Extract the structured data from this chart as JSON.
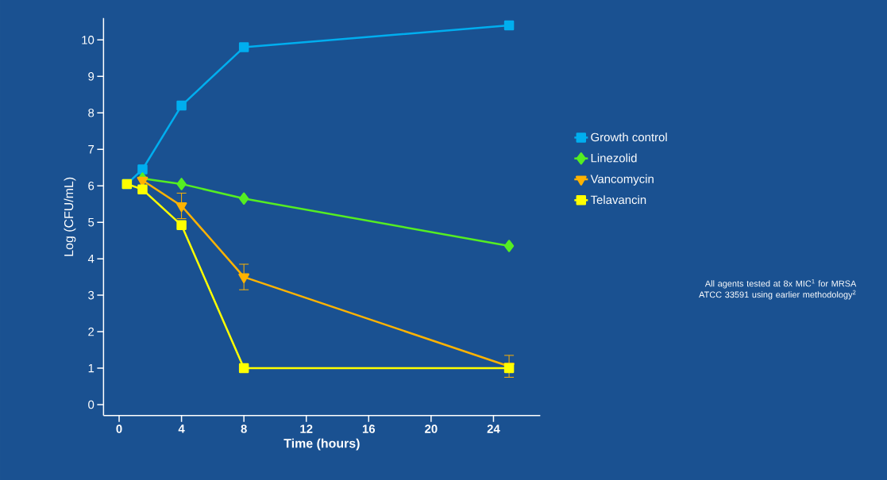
{
  "chart_data": {
    "type": "line",
    "xlabel": "Time (hours)",
    "ylabel": "Log (CFU/mL)",
    "xlim": [
      -1,
      27
    ],
    "xticks": [
      0,
      4,
      8,
      12,
      16,
      20,
      24
    ],
    "ylim": [
      -0.3,
      10.6
    ],
    "yticks": [
      0,
      1,
      2,
      3,
      4,
      5,
      6,
      7,
      8,
      9,
      10
    ],
    "grid": false,
    "legend": "right",
    "line_style": "solid",
    "series": [
      {
        "name": "Growth control",
        "color": "#00aeef",
        "marker": "square",
        "x": [
          0.5,
          1.5,
          4,
          8,
          25
        ],
        "values": [
          6.05,
          6.45,
          8.2,
          9.8,
          10.4
        ]
      },
      {
        "name": "Linezolid",
        "color": "#55ee22",
        "marker": "diamond",
        "x": [
          1.5,
          4,
          8,
          25
        ],
        "values": [
          6.2,
          6.05,
          5.65,
          4.35
        ]
      },
      {
        "name": "Vancomycin",
        "color": "#ffb300",
        "marker": "triangle",
        "x": [
          1.5,
          4,
          8,
          25
        ],
        "values": [
          6.15,
          5.45,
          3.5,
          1.05
        ],
        "errors": [
          null,
          0.35,
          0.35,
          0.3
        ]
      },
      {
        "name": "Telavancin",
        "color": "#ffff00",
        "marker": "square",
        "x": [
          0.5,
          1.5,
          4,
          8,
          25
        ],
        "values": [
          6.05,
          5.9,
          4.92,
          1.0,
          1.0
        ]
      }
    ],
    "annotations": [
      "All agents tested at 8x MIC$^{1}$ for MRSA ATCC 33591 using earlier methodology$^{2}$"
    ]
  }
}
